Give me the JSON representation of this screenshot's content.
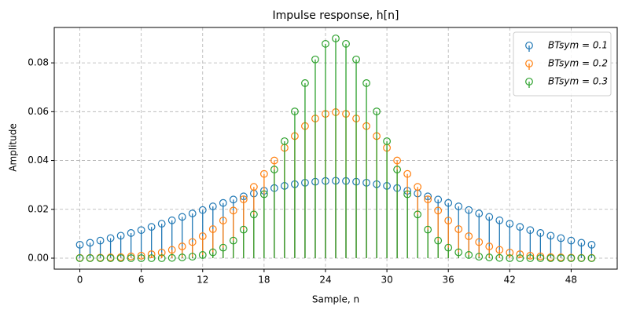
{
  "chart_data": {
    "type": "stem",
    "title": "Impulse response, h[n]",
    "x_label": "Sample, n",
    "y_label": "Amplitude",
    "x": [
      0,
      1,
      2,
      3,
      4,
      5,
      6,
      7,
      8,
      9,
      10,
      11,
      12,
      13,
      14,
      15,
      16,
      17,
      18,
      19,
      20,
      21,
      22,
      23,
      24,
      25,
      26,
      27,
      28,
      29,
      30,
      31,
      32,
      33,
      34,
      35,
      36,
      37,
      38,
      39,
      40,
      41,
      42,
      43,
      44,
      45,
      46,
      47,
      48,
      49,
      50
    ],
    "series": [
      {
        "name": "BTsym = 0.1",
        "color": "#1f77b4",
        "values": [
          0.0055,
          0.0063,
          0.0072,
          0.0082,
          0.0092,
          0.0103,
          0.0115,
          0.0128,
          0.0141,
          0.0155,
          0.0169,
          0.0183,
          0.0197,
          0.0212,
          0.0226,
          0.024,
          0.0253,
          0.0265,
          0.0276,
          0.0287,
          0.0296,
          0.0303,
          0.0309,
          0.0313,
          0.0316,
          0.0317,
          0.0316,
          0.0313,
          0.0309,
          0.0303,
          0.0296,
          0.0287,
          0.0276,
          0.0265,
          0.0253,
          0.024,
          0.0226,
          0.0212,
          0.0197,
          0.0183,
          0.0169,
          0.0155,
          0.0141,
          0.0128,
          0.0115,
          0.0103,
          0.0092,
          0.0082,
          0.0072,
          0.0063,
          0.0055
        ]
      },
      {
        "name": "BTsym = 0.2",
        "color": "#ff7f0e",
        "values": [
          0.0001,
          0.0001,
          0.0002,
          0.0003,
          0.0004,
          0.0007,
          0.001,
          0.0016,
          0.0023,
          0.0034,
          0.0048,
          0.0066,
          0.009,
          0.0119,
          0.0154,
          0.0195,
          0.0241,
          0.0292,
          0.0345,
          0.04,
          0.0452,
          0.05,
          0.0541,
          0.0572,
          0.0591,
          0.0598,
          0.0591,
          0.0572,
          0.0541,
          0.05,
          0.0452,
          0.04,
          0.0345,
          0.0292,
          0.0241,
          0.0195,
          0.0154,
          0.0119,
          0.009,
          0.0066,
          0.0048,
          0.0034,
          0.0023,
          0.0016,
          0.001,
          0.0007,
          0.0004,
          0.0003,
          0.0002,
          0.0001,
          0.0001
        ]
      },
      {
        "name": "BTsym = 0.3",
        "color": "#2ca02c",
        "values": [
          0,
          0,
          0,
          0,
          0,
          0,
          0,
          0,
          0,
          0.0001,
          0.0003,
          0.0006,
          0.0013,
          0.0024,
          0.0043,
          0.0072,
          0.0117,
          0.0179,
          0.0262,
          0.0363,
          0.0479,
          0.0601,
          0.0717,
          0.0814,
          0.0878,
          0.09,
          0.0878,
          0.0814,
          0.0717,
          0.0601,
          0.0479,
          0.0363,
          0.0262,
          0.0179,
          0.0117,
          0.0072,
          0.0043,
          0.0024,
          0.0013,
          0.0006,
          0.0003,
          0.0001,
          0,
          0,
          0,
          0,
          0,
          0,
          0,
          0,
          0
        ]
      }
    ],
    "xlim": [
      -2.5,
      52.5
    ],
    "xticks": [
      0,
      6,
      12,
      18,
      24,
      30,
      36,
      42,
      48
    ],
    "ylim": [
      -0.0045,
      0.0945
    ],
    "yticks": [
      {
        "value": 0,
        "label": "0.00"
      },
      {
        "value": 0.02,
        "label": "0.02"
      },
      {
        "value": 0.04,
        "label": "0.04"
      },
      {
        "value": 0.06,
        "label": "0.06"
      },
      {
        "value": 0.08,
        "label": "0.08"
      }
    ],
    "grid": true,
    "legend": "upper right"
  }
}
